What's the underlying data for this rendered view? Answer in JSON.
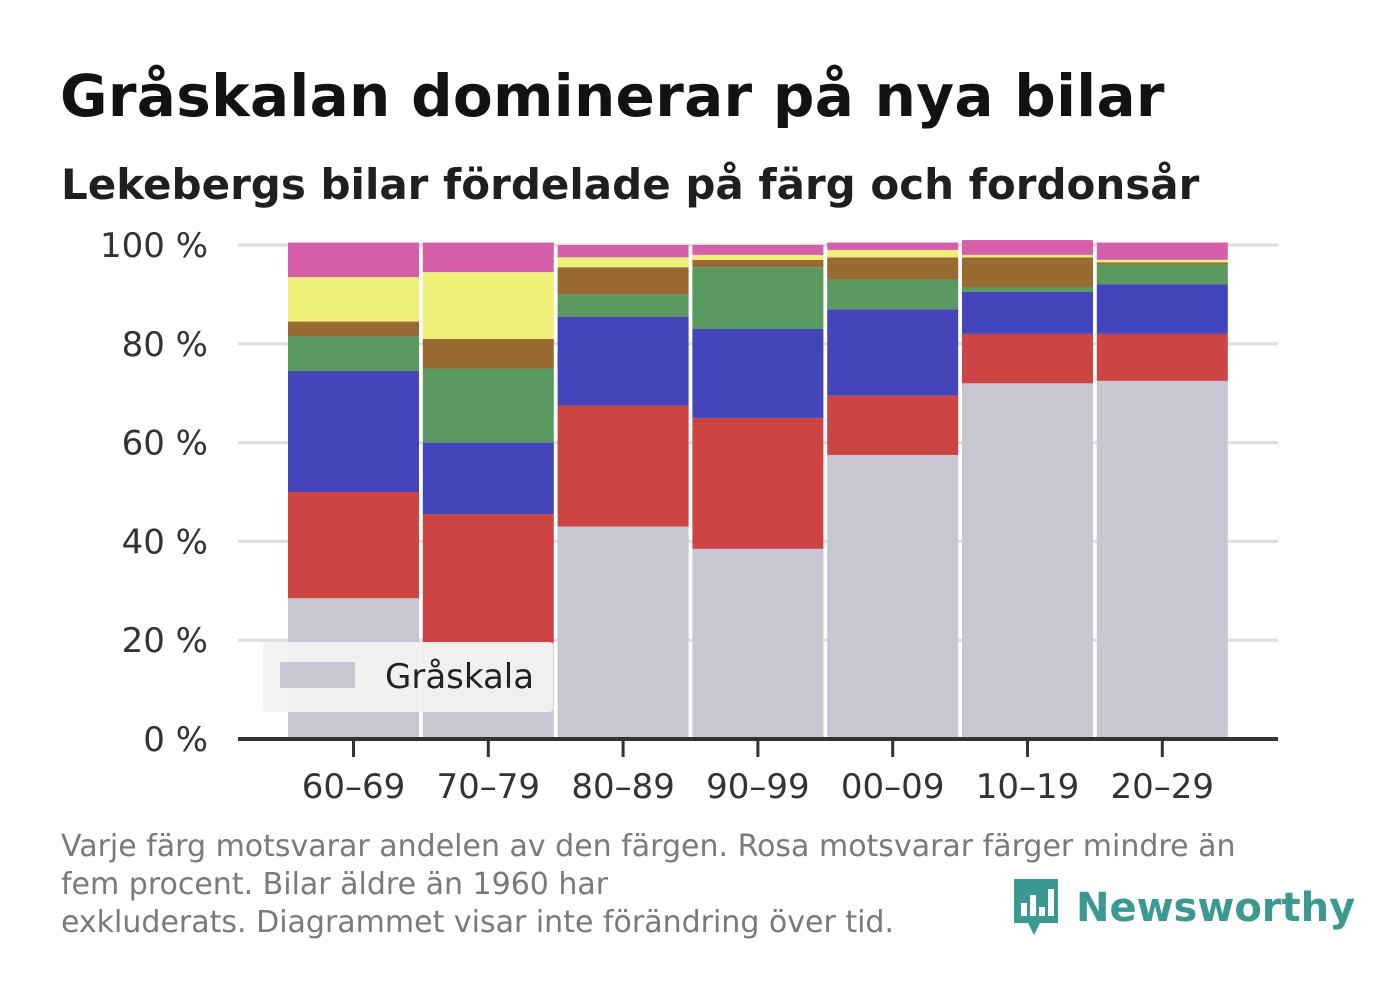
{
  "header": {
    "title": "Gråskalan dominerar på nya bilar",
    "subtitle": "Lekebergs bilar fördelade på färg och fordonsår"
  },
  "footer": {
    "caption_line1": "Varje färg motsvarar andelen av den färgen. Rosa motsvarar färger mindre än",
    "caption_line2": "fem procent. Bilar äldre än 1960 har",
    "caption_line3": "exkluderats. Diagrammet visar inte förändring över tid.",
    "brand": "Newsworthy",
    "brand_icon": "newsworthy-logo-icon",
    "brand_color": "#3a9a91"
  },
  "chart_data": {
    "type": "bar",
    "stacked": true,
    "categories": [
      "60–69",
      "70–79",
      "80–89",
      "90–99",
      "00–09",
      "10–19",
      "20–29"
    ],
    "y_ticks": [
      0,
      20,
      40,
      60,
      80,
      100
    ],
    "y_tick_suffix": " %",
    "ylim": [
      0,
      100
    ],
    "grid": true,
    "legend": {
      "position": "bottom-left",
      "entries": [
        "Gråskala"
      ]
    },
    "series": [
      {
        "name": "Gråskala",
        "color": "#c8c6d0",
        "values": [
          28.5,
          19.5,
          43,
          38.5,
          57.5,
          72,
          72.5
        ]
      },
      {
        "color": "#cc4444",
        "values": [
          21.5,
          26,
          24.5,
          26.5,
          12,
          10,
          9.5
        ]
      },
      {
        "color": "#4444bb",
        "values": [
          24.5,
          14.5,
          18,
          18,
          17.5,
          8.5,
          10
        ]
      },
      {
        "color": "#5a9a60",
        "values": [
          7,
          15,
          4.5,
          12.5,
          6,
          1,
          4
        ]
      },
      {
        "color": "#996b33",
        "values": [
          3,
          6,
          5.5,
          1.5,
          4.5,
          6,
          0.5
        ]
      },
      {
        "color": "#eef077",
        "values": [
          9,
          13.5,
          2,
          1,
          1.5,
          0.5,
          0.5
        ]
      },
      {
        "color": "#d65fab",
        "values": [
          7,
          6,
          2.5,
          2,
          1.5,
          3,
          3.5
        ]
      }
    ]
  }
}
